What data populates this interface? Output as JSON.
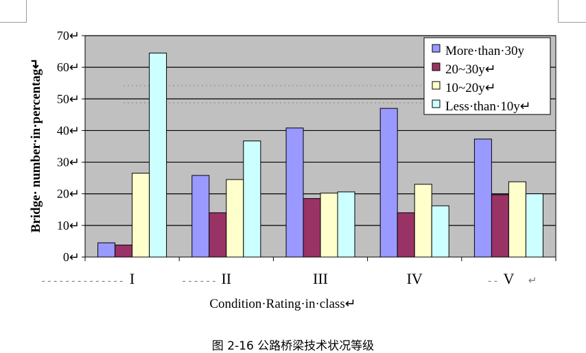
{
  "chart_data": {
    "type": "bar",
    "ylabel": "Bridge· number·in·percentag↵",
    "xlabel": "Condition·Rating·in·class↵",
    "ylim": [
      0,
      70
    ],
    "yticks": [
      0,
      10,
      20,
      30,
      40,
      50,
      60,
      70
    ],
    "ytick_suffix": "↵",
    "categories": [
      "I",
      "II",
      "III",
      "IV",
      "V"
    ],
    "category_markers": [
      "- - - - - - - - - - - - - -",
      "- - - - - -",
      "",
      "",
      "- -",
      "↵"
    ],
    "series": [
      {
        "name": "More·than·30y",
        "color": "#9999ff",
        "values": [
          4.5,
          25.8,
          40.8,
          47,
          37.3
        ]
      },
      {
        "name": "20~30y↵",
        "color": "#993366",
        "values": [
          3.8,
          14,
          18.5,
          14,
          19.7
        ]
      },
      {
        "name": "10~20y↵",
        "color": "#ffffcc",
        "values": [
          26.5,
          24.5,
          20.2,
          23,
          23.8
        ]
      },
      {
        "name": "Less·than·10y↵",
        "color": "#ccffff",
        "values": [
          64.5,
          36.7,
          20.6,
          16.2,
          20
        ]
      }
    ],
    "plot_background": "#c0c0c0",
    "grid": true,
    "legend_position": "top-right"
  },
  "caption": "图 2-16  公路桥梁技术状况等级"
}
